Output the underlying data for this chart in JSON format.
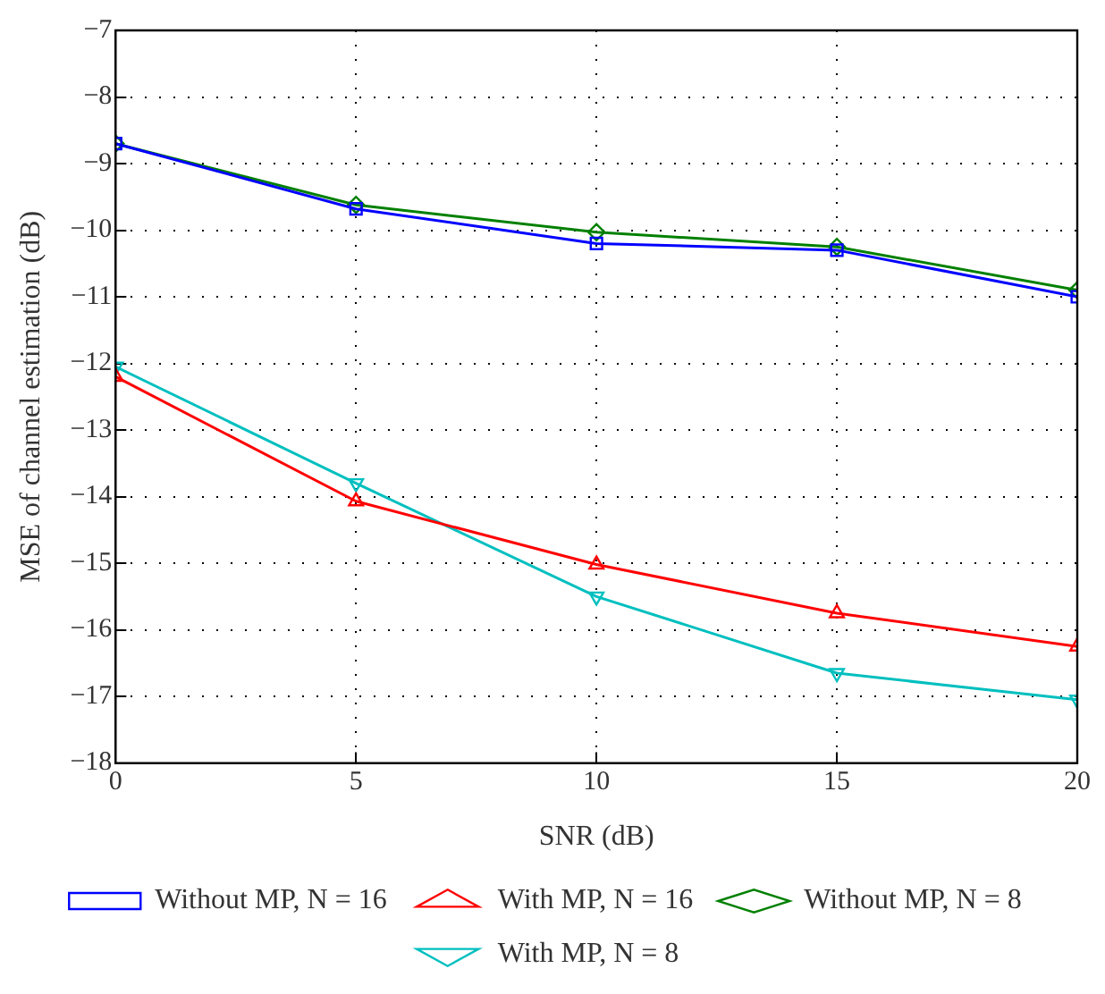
{
  "chart_data": {
    "type": "line",
    "xlabel": "SNR (dB)",
    "ylabel": "MSE of channel estimation (dB)",
    "x": [
      0,
      5,
      10,
      15,
      20
    ],
    "xlim": [
      0,
      20
    ],
    "xticks": [
      0,
      5,
      10,
      15,
      20
    ],
    "ylim": [
      -18,
      -7
    ],
    "yticks": [
      -18,
      -17,
      -16,
      -15,
      -14,
      -13,
      -12,
      -11,
      -10,
      -9,
      -8,
      -7
    ],
    "grid": true,
    "legend": "bottom",
    "line_style": "solid",
    "series": [
      {
        "name": "Without MP, N = 16",
        "color": "#0000ff",
        "marker": "square",
        "values": [
          -8.7,
          -9.68,
          -10.2,
          -10.3,
          -11.0
        ]
      },
      {
        "name": "With MP, N = 16",
        "color": "#ff0000",
        "marker": "triangle",
        "values": [
          -12.2,
          -14.07,
          -15.02,
          -15.75,
          -16.25
        ]
      },
      {
        "name": "Without MP, N = 8",
        "color": "#008000",
        "marker": "diamond",
        "values": [
          -8.7,
          -9.62,
          -10.03,
          -10.25,
          -10.9
        ]
      },
      {
        "name": "With MP, N = 8",
        "color": "#00bfbf",
        "marker": "triangle-down",
        "values": [
          -12.05,
          -13.8,
          -15.5,
          -16.65,
          -17.05
        ]
      }
    ]
  }
}
